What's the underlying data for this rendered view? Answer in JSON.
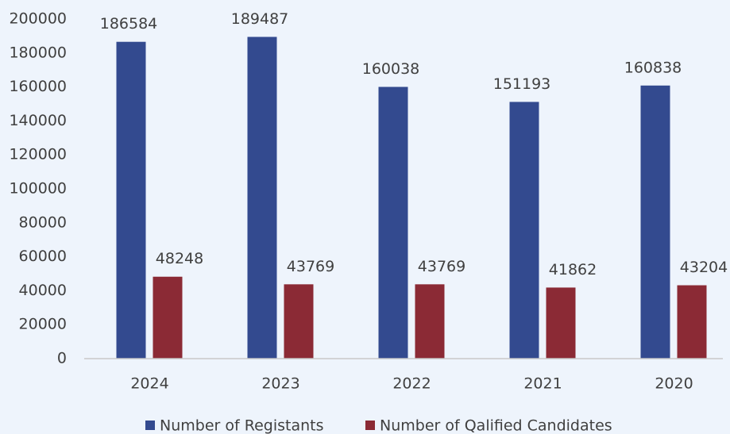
{
  "chart_data": {
    "type": "bar",
    "categories": [
      "2024",
      "2023",
      "2022",
      "2021",
      "2020"
    ],
    "series": [
      {
        "name": "Number of Registants",
        "color": "#334a8f",
        "values": [
          186584,
          189487,
          160038,
          151193,
          160838
        ]
      },
      {
        "name": "Number of Qalified Candidates",
        "color": "#8b2a35",
        "values": [
          48248,
          43769,
          43769,
          41862,
          43204
        ]
      }
    ],
    "ylim": [
      0,
      200000
    ],
    "yticks": [
      0,
      20000,
      40000,
      60000,
      80000,
      100000,
      120000,
      140000,
      160000,
      180000,
      200000
    ],
    "grid": false,
    "legend": "bottom"
  }
}
